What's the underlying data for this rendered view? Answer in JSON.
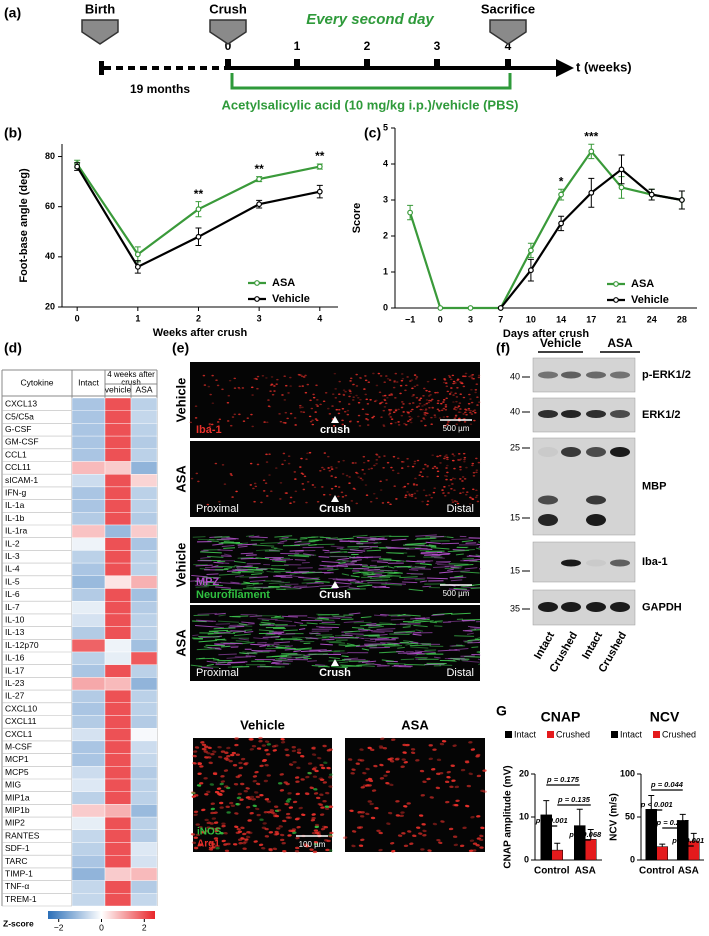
{
  "panel_labels": [
    "(a)",
    "(b)",
    "(c)",
    "(d)",
    "(e)",
    "(f)",
    "G"
  ],
  "timeline": {
    "events": [
      "Birth",
      "Crush",
      "Sacrifice"
    ],
    "period": "Every second day",
    "ticks": [
      "0",
      "1",
      "2",
      "3",
      "4"
    ],
    "axis_label": "t (weeks)",
    "age": "19 months",
    "treatment": "Acetylsalicylic acid (10 mg/kg i.p.)/vehicle (PBS)"
  },
  "chart_data": [
    {
      "type": "line",
      "ylabel": "Foot-base angle (deg)",
      "xlabel": "Weeks after crush",
      "x": [
        0,
        1,
        2,
        3,
        4
      ],
      "xlim": [
        -0.25,
        4.3
      ],
      "xticks": [
        0,
        1,
        2,
        3,
        4
      ],
      "ylim": [
        20,
        85
      ],
      "yticks": [
        20,
        40,
        60,
        80
      ],
      "legend": "lower right",
      "series": [
        {
          "name": "ASA",
          "color": "#3a9a3a",
          "values": [
            77,
            41,
            59,
            71,
            76
          ],
          "errors": [
            1.5,
            3,
            3,
            1,
            1
          ]
        },
        {
          "name": "Vehicle",
          "color": "#000000",
          "values": [
            76,
            36,
            48,
            61,
            66
          ],
          "errors": [
            1.5,
            2.5,
            3.5,
            1.5,
            2.5
          ]
        }
      ],
      "annotations": [
        {
          "text": "**",
          "x": 2
        },
        {
          "text": "**",
          "x": 3
        },
        {
          "text": "**",
          "x": 4
        }
      ]
    },
    {
      "type": "line",
      "ylabel": "Score",
      "xlabel": "Days after crush",
      "categories": [
        "−1",
        "0",
        "3",
        "7",
        "10",
        "14",
        "17",
        "21",
        "24",
        "28"
      ],
      "ylim": [
        0,
        5
      ],
      "yticks": [
        0,
        1,
        2,
        3,
        4,
        5
      ],
      "legend": "lower right",
      "series": [
        {
          "name": "ASA",
          "color": "#3a9a3a",
          "values": [
            2.65,
            0,
            0,
            0,
            1.6,
            3.15,
            4.35,
            3.35,
            3.15,
            3.0
          ],
          "errors": [
            0.2,
            0,
            0,
            0,
            0.2,
            0.15,
            0.2,
            0.3,
            0.15,
            0.25
          ]
        },
        {
          "name": "Vehicle",
          "color": "#000000",
          "values": [
            null,
            null,
            null,
            0,
            1.05,
            2.35,
            3.2,
            3.85,
            3.15,
            3.0
          ],
          "errors": [
            null,
            null,
            null,
            0,
            0.3,
            0.2,
            0.4,
            0.4,
            0.15,
            0.25
          ]
        }
      ],
      "annotations": [
        {
          "text": "*",
          "category": "14"
        },
        {
          "text": "***",
          "category": "17"
        }
      ]
    },
    {
      "type": "heatmap",
      "header": "Cytokine",
      "column_group": "4 weeks after crush",
      "columns": [
        "Intact",
        "vehicle",
        "ASA"
      ],
      "rows": [
        "CXCL13",
        "C5/C5a",
        "G-CSF",
        "GM-CSF",
        "CCL1",
        "CCL11",
        "sICAM-1",
        "IFN-g",
        "IL-1a",
        "IL-1b",
        "IL-1ra",
        "IL-2",
        "IL-3",
        "IL-4",
        "IL-5",
        "IL-6",
        "IL-7",
        "IL-10",
        "IL-13",
        "IL-12p70",
        "IL-16",
        "IL-17",
        "IL-23",
        "IL-27",
        "CXCL10",
        "CXCL11",
        "CXCL1",
        "M-CSF",
        "MCP1",
        "MCP5",
        "MIG",
        "MIP1a",
        "MIP1b",
        "MIP2",
        "RANTES",
        "SDF-1",
        "TARC",
        "TIMP-1",
        "TNF-α",
        "TREM-1"
      ],
      "values": [
        [
          -1,
          2,
          -0.8
        ],
        [
          -1,
          2,
          -0.7
        ],
        [
          -1,
          2,
          -0.8
        ],
        [
          -1,
          2,
          -0.9
        ],
        [
          -1,
          2,
          -0.8
        ],
        [
          0.8,
          0.6,
          -1.3
        ],
        [
          -0.6,
          2,
          0.5
        ],
        [
          -1,
          2,
          -0.8
        ],
        [
          -1,
          2,
          -0.8
        ],
        [
          -0.9,
          2,
          -0.9
        ],
        [
          0.7,
          -1.2,
          0.6
        ],
        [
          -0.2,
          2,
          -1
        ],
        [
          -0.8,
          2,
          -0.8
        ],
        [
          -1,
          2,
          -0.8
        ],
        [
          -1.2,
          0.3,
          0.9
        ],
        [
          -0.9,
          2,
          -1.1
        ],
        [
          -0.3,
          2,
          -0.9
        ],
        [
          -0.5,
          2,
          -0.8
        ],
        [
          -0.9,
          2,
          -0.8
        ],
        [
          1.8,
          -0.2,
          -1.1
        ],
        [
          -0.8,
          -0.3,
          1.9
        ],
        [
          -1,
          2,
          -0.8
        ],
        [
          1.0,
          0.8,
          -1.3
        ],
        [
          -0.9,
          2,
          -0.8
        ],
        [
          -1,
          2,
          -0.8
        ],
        [
          -0.9,
          2,
          -0.9
        ],
        [
          -0.5,
          2,
          -0.1
        ],
        [
          -1,
          2,
          -0.6
        ],
        [
          -1,
          2,
          -0.7
        ],
        [
          -0.6,
          2,
          -0.9
        ],
        [
          -0.4,
          2,
          -0.8
        ],
        [
          -0.8,
          2,
          -0.8
        ],
        [
          0.6,
          0.9,
          -1.2
        ],
        [
          -0.3,
          2,
          -0.8
        ],
        [
          -0.7,
          2,
          -0.9
        ],
        [
          -0.8,
          2,
          -0.4
        ],
        [
          -1,
          2,
          -0.5
        ],
        [
          -1.3,
          0.6,
          0.8
        ],
        [
          -0.7,
          2,
          -0.9
        ],
        [
          -0.7,
          2,
          -0.7
        ]
      ],
      "colorbar_label": "Z-score",
      "zlim": [
        -2.5,
        2.5
      ],
      "zticks": [
        {
          "value": -2,
          "label": "−2"
        },
        0,
        2
      ],
      "colors": [
        "#2b6fb8",
        "#ffffff",
        "#e8262a"
      ]
    },
    {
      "type": "grouped_bar",
      "title": "CNAP",
      "ylabel": "CNAP amplitude (mV)",
      "categories": [
        "Control",
        "ASA"
      ],
      "ylim": [
        0,
        20
      ],
      "yticks": [
        0,
        10,
        20
      ],
      "legend": "top",
      "series": [
        {
          "name": "Intact",
          "color": "#000000",
          "values": [
            10.5,
            8.0
          ],
          "errors": [
            3.3,
            3.8
          ]
        },
        {
          "name": "Crushed",
          "color": "#e41a1c",
          "values": [
            2.3,
            4.8
          ],
          "errors": [
            1.6,
            2.3
          ]
        }
      ],
      "annotations": [
        "p < 0.001",
        "p = 0.175",
        "p = 0.135",
        "p = 0.068"
      ]
    },
    {
      "type": "grouped_bar",
      "title": "NCV",
      "ylabel": "NCV (m/s)",
      "categories": [
        "Control",
        "ASA"
      ],
      "ylim": [
        0,
        100
      ],
      "yticks": [
        0,
        50,
        100
      ],
      "legend": "top",
      "series": [
        {
          "name": "Intact",
          "color": "#000000",
          "values": [
            59,
            46
          ],
          "errors": [
            16,
            7
          ]
        },
        {
          "name": "Crushed",
          "color": "#e41a1c",
          "values": [
            15.5,
            22
          ],
          "errors": [
            3,
            9
          ]
        }
      ],
      "annotations": [
        "p = 0.044",
        "p < 0.001",
        "p = 0.267",
        "p < 0.001"
      ]
    }
  ],
  "histology": {
    "iba1": {
      "groups": [
        "Vehicle",
        "ASA"
      ],
      "stains": [
        "Iba-1"
      ],
      "stain_colors": [
        "#e8302a"
      ],
      "crush_labels": [
        "crush",
        "Crush"
      ],
      "scale_bar": "500 µm",
      "proximal": "Proximal",
      "distal": "Distal"
    },
    "mpz": {
      "groups": [
        "Vehicle",
        "ASA"
      ],
      "stains": [
        "MPZ",
        "Neurofilament"
      ],
      "stain_colors": [
        "#b050c8",
        "#30c040"
      ],
      "crush_labels": [
        "Crush",
        "Crush"
      ],
      "scale_bar": "500 µm",
      "proximal": "Proximal",
      "distal": "Distal"
    },
    "macrophage": {
      "groups": [
        "Vehicle",
        "ASA"
      ],
      "stains": [
        "iNOS",
        "Arg1"
      ],
      "stain_colors": [
        "#30c040",
        "#e8302a"
      ],
      "scale_bar": "100 µm"
    }
  },
  "western_blot": {
    "groups": [
      "Vehicle",
      "ASA"
    ],
    "lanes": [
      "Intact",
      "Crushed",
      "Intact",
      "Crushed"
    ],
    "blots": [
      {
        "name": "p-ERK1/2",
        "markers": [
          "40"
        ]
      },
      {
        "name": "ERK1/2",
        "markers": [
          "40"
        ]
      },
      {
        "name": "MBP",
        "markers": [
          "25",
          "15"
        ]
      },
      {
        "name": "Iba-1",
        "markers": [
          "15"
        ]
      },
      {
        "name": "GAPDH",
        "markers": [
          "35"
        ]
      }
    ]
  }
}
